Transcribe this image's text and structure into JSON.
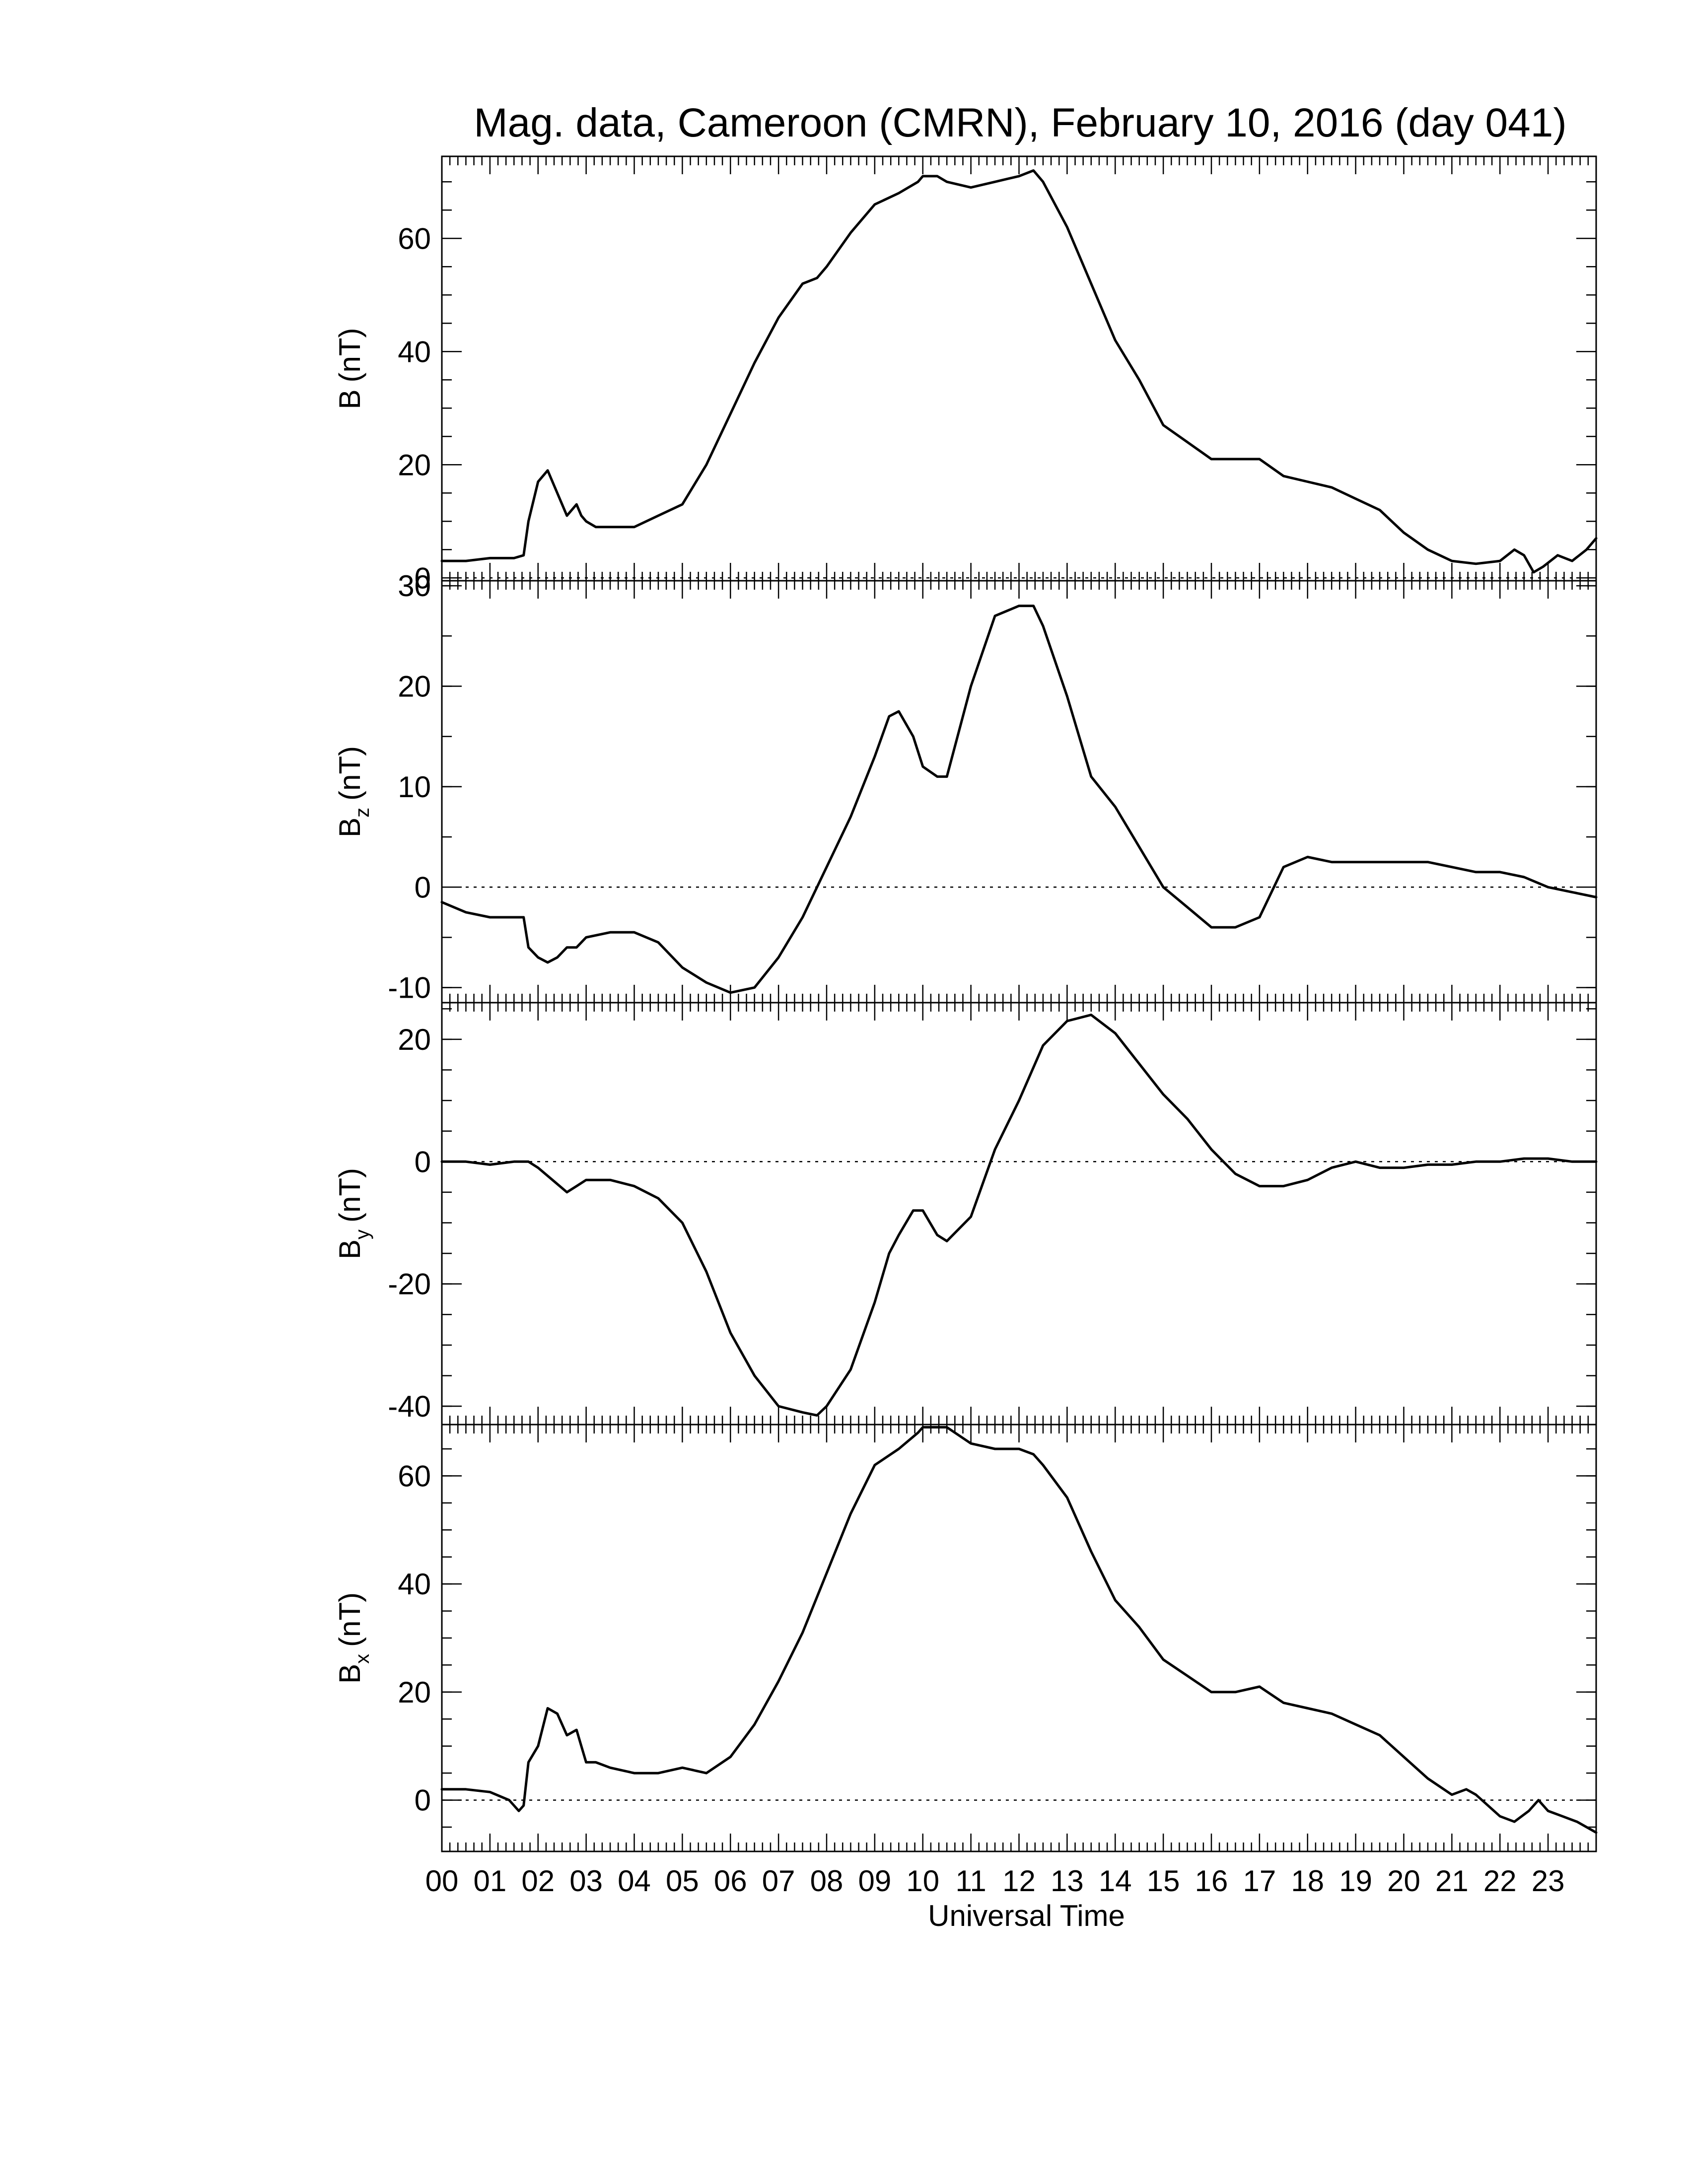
{
  "title": "Mag. data, Cameroon (CMRN), February 10, 2016 (day 041)",
  "chart_data": [
    {
      "type": "line",
      "panel": "B",
      "ylabel": "B (nT)",
      "ylabel_main": "B",
      "ylabel_sub": "",
      "ylabel_unit": "(nT)",
      "ylim": [
        -0.5,
        74.5
      ],
      "yticks": [
        0,
        20,
        40,
        60
      ],
      "zero_line": true,
      "series": [
        {
          "x": [
            0,
            0.5,
            1,
            1.5,
            1.7,
            1.8,
            2.0,
            2.2,
            2.4,
            2.6,
            2.8,
            2.9,
            3.0,
            3.2,
            3.5,
            4.0,
            4.5,
            5.0,
            5.5,
            6.0,
            6.5,
            7.0,
            7.5,
            7.8,
            8.0,
            8.5,
            9.0,
            9.5,
            9.9,
            10.0,
            10.3,
            10.5,
            11.0,
            11.5,
            12.0,
            12.3,
            12.5,
            13.0,
            13.5,
            14.0,
            14.5,
            15.0,
            15.5,
            16.0,
            16.5,
            17.0,
            17.5,
            18.0,
            18.5,
            19.0,
            19.5,
            20.0,
            20.5,
            21.0,
            21.5,
            22.0,
            22.3,
            22.5,
            22.7,
            22.9,
            23.2,
            23.5,
            23.8,
            24.0
          ],
          "y": [
            3,
            3,
            3.5,
            3.5,
            4,
            10,
            17,
            19,
            15,
            11,
            13,
            11,
            10,
            9,
            9,
            9,
            11,
            13,
            20,
            29,
            38,
            46,
            52,
            53,
            55,
            61,
            66,
            68,
            70,
            71,
            71,
            70,
            69,
            70,
            71,
            72,
            70,
            62,
            52,
            42,
            35,
            27,
            24,
            21,
            21,
            21,
            18,
            17,
            16,
            14,
            12,
            8,
            5,
            3,
            2.5,
            3,
            5,
            4,
            1,
            2,
            4,
            3,
            5,
            7
          ]
        }
      ]
    },
    {
      "type": "line",
      "panel": "Bz",
      "ylabel": "Bz (nT)",
      "ylabel_main": "B",
      "ylabel_sub": "z",
      "ylabel_unit": "(nT)",
      "ylim": [
        -11.5,
        30.5
      ],
      "yticks": [
        -10,
        0,
        10,
        20,
        30
      ],
      "zero_line": true,
      "series": [
        {
          "x": [
            0,
            0.5,
            1,
            1.5,
            1.7,
            1.8,
            2.0,
            2.2,
            2.4,
            2.6,
            2.8,
            3.0,
            3.5,
            4.0,
            4.5,
            5.0,
            5.5,
            6.0,
            6.5,
            7.0,
            7.5,
            8.0,
            8.5,
            9.0,
            9.3,
            9.5,
            9.8,
            10.0,
            10.3,
            10.5,
            11.0,
            11.5,
            12.0,
            12.3,
            12.5,
            13.0,
            13.5,
            14.0,
            14.5,
            15.0,
            15.5,
            16.0,
            16.5,
            17.0,
            17.5,
            18.0,
            18.5,
            19.0,
            19.5,
            20.0,
            20.5,
            21.0,
            21.5,
            22.0,
            22.5,
            23.0,
            23.5,
            24.0
          ],
          "y": [
            -1.5,
            -2.5,
            -3,
            -3,
            -3,
            -6,
            -7,
            -7.5,
            -7,
            -6,
            -6,
            -5,
            -4.5,
            -4.5,
            -5.5,
            -8,
            -9.5,
            -10.5,
            -10,
            -7,
            -3,
            2,
            7,
            13,
            17,
            17.5,
            15,
            12,
            11,
            11,
            20,
            27,
            28,
            28,
            26,
            19,
            11,
            8,
            4,
            0,
            -2,
            -4,
            -4,
            -3,
            2,
            3,
            2.5,
            2.5,
            2.5,
            2.5,
            2.5,
            2,
            1.5,
            1.5,
            1,
            0,
            -0.5,
            -1
          ]
        }
      ]
    },
    {
      "type": "line",
      "panel": "By",
      "ylabel": "By (nT)",
      "ylabel_main": "B",
      "ylabel_sub": "y",
      "ylabel_unit": "(nT)",
      "ylim": [
        -43,
        26
      ],
      "yticks": [
        -40,
        -20,
        0,
        20
      ],
      "zero_line": true,
      "series": [
        {
          "x": [
            0,
            0.5,
            1,
            1.5,
            1.8,
            2.0,
            2.3,
            2.6,
            2.8,
            3.0,
            3.5,
            4.0,
            4.5,
            5.0,
            5.5,
            6.0,
            6.5,
            7.0,
            7.5,
            7.8,
            8.0,
            8.5,
            9.0,
            9.3,
            9.5,
            9.8,
            10.0,
            10.3,
            10.5,
            11.0,
            11.5,
            12.0,
            12.5,
            13.0,
            13.5,
            14.0,
            14.5,
            15.0,
            15.5,
            16.0,
            16.5,
            17.0,
            17.5,
            18.0,
            18.5,
            19.0,
            19.5,
            20.0,
            20.5,
            21.0,
            21.5,
            22.0,
            22.5,
            23.0,
            23.5,
            24.0
          ],
          "y": [
            0,
            0,
            -0.5,
            0,
            0,
            -1,
            -3,
            -5,
            -4,
            -3,
            -3,
            -4,
            -6,
            -10,
            -18,
            -28,
            -35,
            -40,
            -41,
            -41.5,
            -40,
            -34,
            -23,
            -15,
            -12,
            -8,
            -8,
            -12,
            -13,
            -9,
            2,
            10,
            19,
            23,
            24,
            21,
            16,
            11,
            7,
            2,
            -2,
            -4,
            -4,
            -3,
            -1,
            0,
            -1,
            -1,
            -0.5,
            -0.5,
            0,
            0,
            0.5,
            0.5,
            0,
            0
          ]
        }
      ]
    },
    {
      "type": "line",
      "panel": "Bx",
      "ylabel": "Bx (nT)",
      "ylabel_main": "B",
      "ylabel_sub": "x",
      "ylabel_unit": "(nT)",
      "ylim": [
        -9.5,
        69.5
      ],
      "yticks": [
        0,
        20,
        40,
        60
      ],
      "zero_line": true,
      "xlabel": "Universal Time",
      "xticklabels": [
        "00",
        "01",
        "02",
        "03",
        "04",
        "05",
        "06",
        "07",
        "08",
        "09",
        "10",
        "11",
        "12",
        "13",
        "14",
        "15",
        "16",
        "17",
        "18",
        "19",
        "20",
        "21",
        "22",
        "23"
      ],
      "xlim": [
        0,
        24
      ],
      "series": [
        {
          "x": [
            0,
            0.5,
            1,
            1.4,
            1.6,
            1.7,
            1.8,
            2.0,
            2.2,
            2.4,
            2.6,
            2.8,
            2.9,
            3.0,
            3.2,
            3.5,
            4.0,
            4.5,
            5.0,
            5.5,
            6.0,
            6.5,
            7.0,
            7.5,
            8.0,
            8.5,
            9.0,
            9.5,
            9.9,
            10.0,
            10.3,
            10.5,
            11.0,
            11.5,
            12.0,
            12.3,
            12.5,
            13.0,
            13.5,
            14.0,
            14.5,
            15.0,
            15.5,
            16.0,
            16.5,
            17.0,
            17.5,
            18.0,
            18.5,
            19.0,
            19.5,
            20.0,
            20.5,
            21.0,
            21.3,
            21.5,
            22.0,
            22.3,
            22.6,
            22.8,
            23.0,
            23.3,
            23.6,
            24.0
          ],
          "y": [
            2,
            2,
            1.5,
            0,
            -2,
            -1,
            7,
            10,
            17,
            16,
            12,
            13,
            10,
            7,
            7,
            6,
            5,
            5,
            6,
            5,
            8,
            14,
            22,
            31,
            42,
            53,
            62,
            65,
            68,
            69,
            69,
            69,
            66,
            65,
            65,
            64,
            62,
            56,
            46,
            37,
            32,
            26,
            23,
            20,
            20,
            21,
            18,
            17,
            16,
            14,
            12,
            8,
            4,
            1,
            2,
            1,
            -3,
            -4,
            -2,
            0,
            -2,
            -3,
            -4,
            -6
          ]
        }
      ]
    }
  ]
}
